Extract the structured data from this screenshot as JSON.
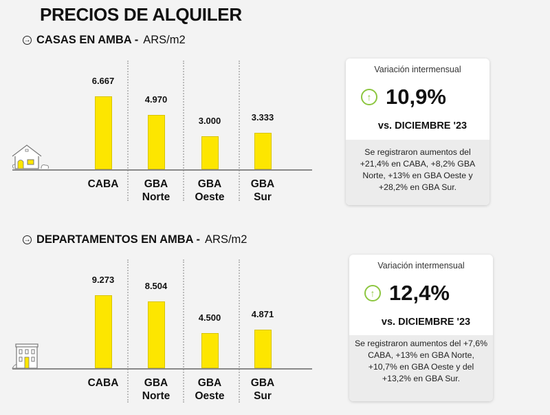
{
  "title": "PRECIOS DE ALQUILER",
  "sections": [
    {
      "heading": "CASAS EN AMBA -",
      "unit": "ARS/m2",
      "icon": "house-icon",
      "card": {
        "caption": "Variación intermensual",
        "value": "10,9%",
        "trend_icon": "arrow-up-circle-icon",
        "comparison": "vs. DICIEMBRE '23",
        "note": "Se registraron aumentos del +21,4% en CABA, +8,2% GBA Norte, +13% en GBA Oeste y +28,2% en GBA Sur."
      }
    },
    {
      "heading": "DEPARTAMENTOS EN AMBA -",
      "unit": "ARS/m2",
      "icon": "apartment-building-icon",
      "card": {
        "caption": "Variación intermensual",
        "value": "12,4%",
        "trend_icon": "arrow-up-circle-icon",
        "comparison": "vs. DICIEMBRE '23",
        "note": "Se registraron aumentos del +7,6% CABA, +13% en GBA Norte, +10,7% en GBA Oeste y del +13,2% en GBA Sur."
      }
    }
  ],
  "colors": {
    "bar": "#fde600",
    "trend_up": "#8cc63f",
    "background": "#f3f3f3"
  },
  "chart_data": [
    {
      "type": "bar",
      "title": "CASAS EN AMBA - ARS/m2",
      "categories": [
        "CABA",
        "GBA\nNorte",
        "GBA\nOeste",
        "GBA\nSur"
      ],
      "values": [
        6667,
        4970,
        3000,
        3333
      ],
      "value_labels": [
        "6.667",
        "4.970",
        "3.000",
        "3.333"
      ],
      "grid": false
    },
    {
      "type": "bar",
      "title": "DEPARTAMENTOS EN AMBA - ARS/m2",
      "categories": [
        "CABA",
        "GBA\nNorte",
        "GBA\nOeste",
        "GBA\nSur"
      ],
      "values": [
        9273,
        8504,
        4500,
        4871
      ],
      "value_labels": [
        "9.273",
        "8.504",
        "4.500",
        "4.871"
      ],
      "grid": false
    }
  ]
}
